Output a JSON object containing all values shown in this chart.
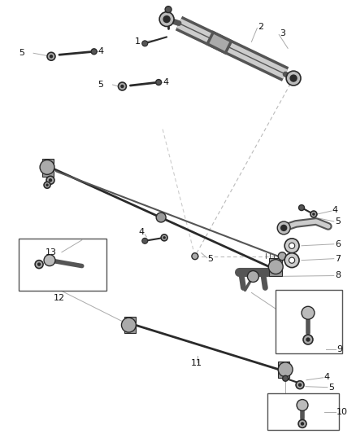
{
  "bg_color": "#ffffff",
  "fig_width": 4.38,
  "fig_height": 5.33,
  "dpi": 100,
  "dark": "#2a2a2a",
  "mid": "#555555",
  "light": "#888888",
  "leader": "#aaaaaa"
}
